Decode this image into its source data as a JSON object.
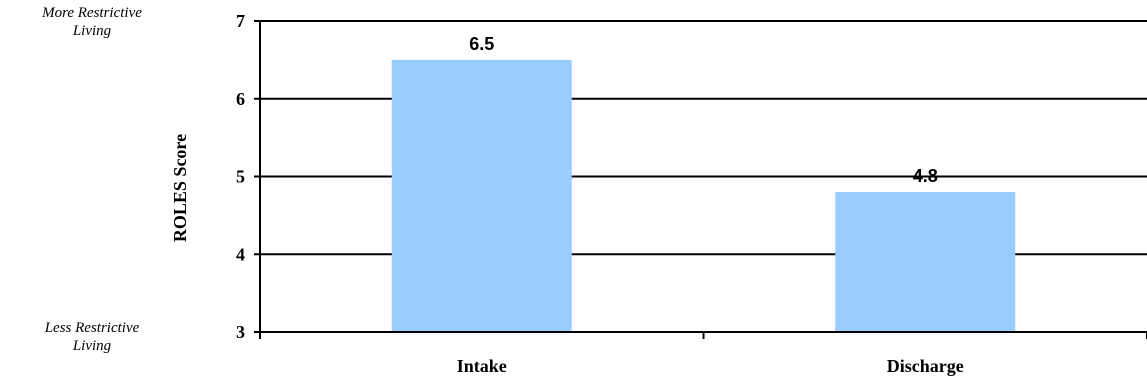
{
  "annotations": {
    "top": [
      "More Restrictive",
      "Living"
    ],
    "bottom": [
      "Less Restrictive",
      "Living"
    ]
  },
  "chart_data": {
    "type": "bar",
    "title": "",
    "xlabel": "",
    "ylabel": "ROLES Score",
    "categories": [
      "Intake",
      "Discharge"
    ],
    "values": [
      6.5,
      4.8
    ],
    "data_labels": [
      "6.5",
      "4.8"
    ],
    "ylim": [
      3,
      7
    ],
    "yticks": [
      3,
      4,
      5,
      6,
      7
    ],
    "grid": true,
    "legend": "none",
    "bar_color": "#99ccff",
    "gridline_color": "#000000"
  }
}
